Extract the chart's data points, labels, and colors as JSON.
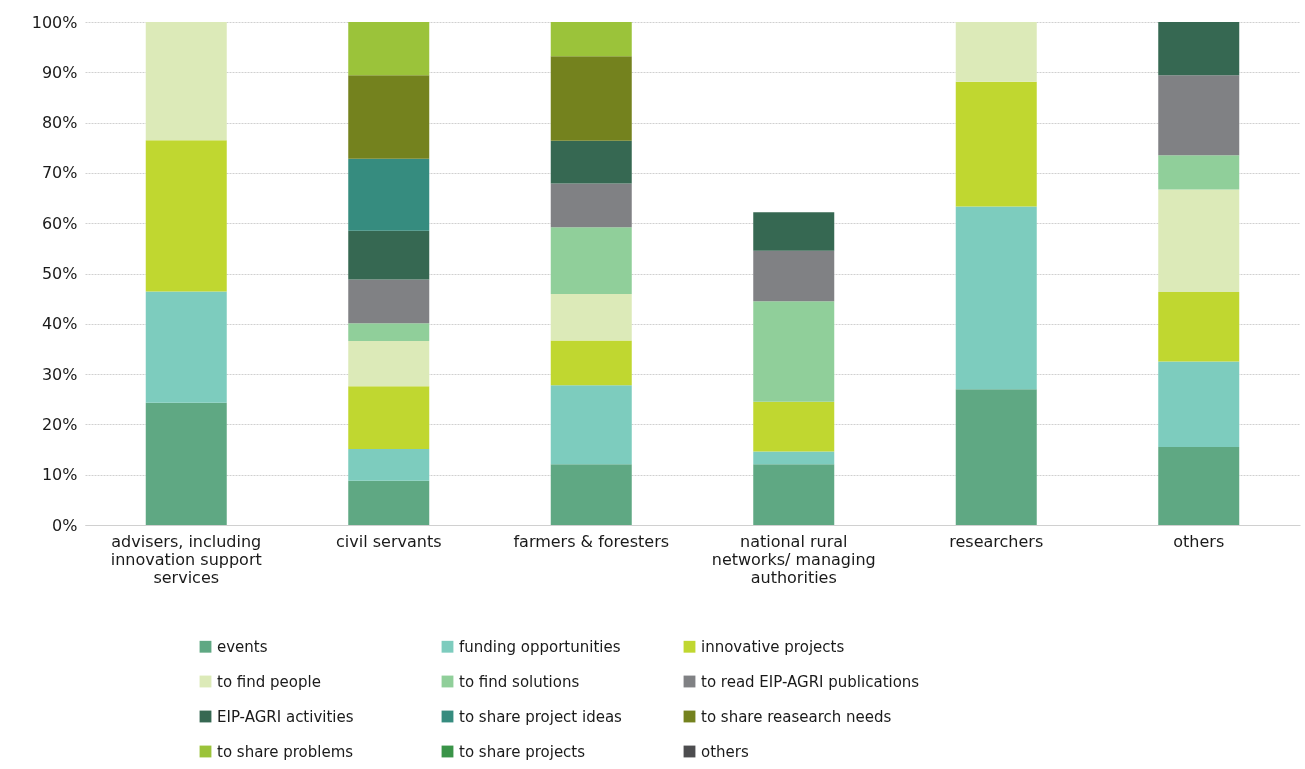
{
  "chart_data": {
    "type": "bar",
    "stacked": true,
    "categories": [
      "advisers, including innovation support services",
      "civil servants",
      "farmers & foresters",
      "national rural networks/ managing authorities",
      "researchers",
      "others"
    ],
    "ylim": [
      0,
      100
    ],
    "yticks": [
      {
        "value": 0,
        "label": "0%"
      },
      {
        "value": 10,
        "label": "10%"
      },
      {
        "value": 20,
        "label": "20%"
      },
      {
        "value": 30,
        "label": "30%"
      },
      {
        "value": 40,
        "label": "40%"
      },
      {
        "value": 50,
        "label": "50%"
      },
      {
        "value": 60,
        "label": "60%"
      },
      {
        "value": 70,
        "label": "70%"
      },
      {
        "value": 80,
        "label": "80%"
      },
      {
        "value": 90,
        "label": "90%"
      },
      {
        "value": 100,
        "label": "100%"
      }
    ],
    "grid": "y",
    "legend": "bottom",
    "series": [
      {
        "name": "events",
        "color": "#5fa883",
        "values": [
          24.3,
          8.8,
          12.1,
          12.1,
          27.0,
          15.5
        ]
      },
      {
        "name": "funding opportunities",
        "color": "#7dccbe",
        "values": [
          22.1,
          6.3,
          15.7,
          2.5,
          36.3,
          17.0
        ]
      },
      {
        "name": "innovative projects",
        "color": "#c0d730",
        "values": [
          30.1,
          12.5,
          8.9,
          9.9,
          24.8,
          13.8
        ]
      },
      {
        "name": "to find people",
        "color": "#dceab8",
        "values": [
          23.5,
          9.0,
          9.2,
          null,
          11.9,
          20.4
        ]
      },
      {
        "name": "to find solutions",
        "color": "#90cf9a",
        "values": [
          null,
          3.5,
          13.3,
          20.0,
          null,
          6.8
        ]
      },
      {
        "name": "to read EIP-AGRI publications",
        "color": "#808184",
        "values": [
          null,
          8.7,
          8.7,
          10.0,
          null,
          15.9
        ]
      },
      {
        "name": "EIP-AGRI activities",
        "color": "#366852",
        "values": [
          null,
          9.7,
          8.5,
          7.7,
          null,
          10.6
        ]
      },
      {
        "name": "to share project ideas",
        "color": "#368c7f",
        "values": [
          null,
          14.3,
          null,
          null,
          null,
          null
        ]
      },
      {
        "name": "to share reasearch needs",
        "color": "#74821e",
        "values": [
          null,
          16.6,
          16.8,
          null,
          null,
          null
        ]
      },
      {
        "name": "to share problems",
        "color": "#9bc33a",
        "values": [
          null,
          10.6,
          6.8,
          null,
          null,
          null
        ]
      },
      {
        "name": "to share projects",
        "color": "#3a9448",
        "values": [
          null,
          null,
          null,
          null,
          null,
          null
        ]
      },
      {
        "name": "others",
        "color": "#4d4d4f",
        "values": [
          null,
          null,
          null,
          null,
          null,
          null
        ]
      }
    ]
  }
}
